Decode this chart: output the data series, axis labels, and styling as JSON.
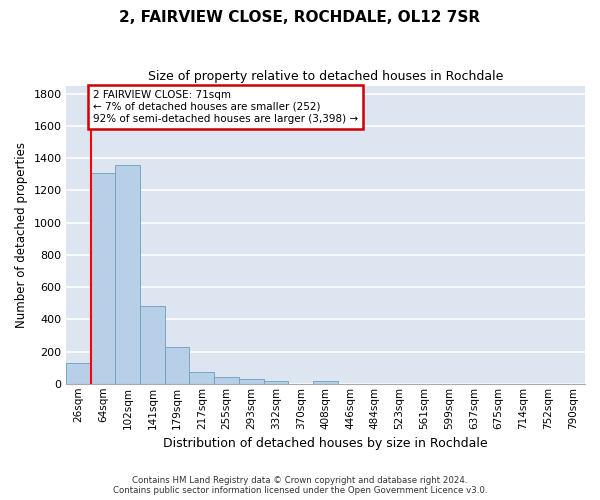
{
  "title": "2, FAIRVIEW CLOSE, ROCHDALE, OL12 7SR",
  "subtitle": "Size of property relative to detached houses in Rochdale",
  "xlabel": "Distribution of detached houses by size in Rochdale",
  "ylabel": "Number of detached properties",
  "bar_color": "#b8cfe8",
  "bar_edge_color": "#6a9fc0",
  "background_color": "#dde6f0",
  "grid_color": "#ffffff",
  "categories": [
    "26sqm",
    "64sqm",
    "102sqm",
    "141sqm",
    "179sqm",
    "217sqm",
    "255sqm",
    "293sqm",
    "332sqm",
    "370sqm",
    "408sqm",
    "446sqm",
    "484sqm",
    "523sqm",
    "561sqm",
    "599sqm",
    "637sqm",
    "675sqm",
    "714sqm",
    "752sqm",
    "790sqm"
  ],
  "values": [
    130,
    1310,
    1360,
    480,
    225,
    75,
    45,
    28,
    15,
    0,
    18,
    0,
    0,
    0,
    0,
    0,
    0,
    0,
    0,
    0,
    0
  ],
  "ylim": [
    0,
    1850
  ],
  "yticks": [
    0,
    200,
    400,
    600,
    800,
    1000,
    1200,
    1400,
    1600,
    1800
  ],
  "annotation_line1": "2 FAIRVIEW CLOSE: 71sqm",
  "annotation_line2": "← 7% of detached houses are smaller (252)",
  "annotation_line3": "92% of semi-detached houses are larger (3,398) →",
  "annotation_box_color": "#ffffff",
  "annotation_box_edge_color": "#cc0000",
  "footer_line1": "Contains HM Land Registry data © Crown copyright and database right 2024.",
  "footer_line2": "Contains public sector information licensed under the Open Government Licence v3.0."
}
